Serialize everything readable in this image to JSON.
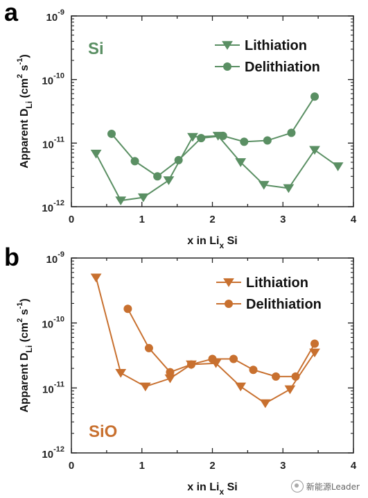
{
  "chart_data": [
    {
      "panel": "a",
      "type": "line",
      "material": "Si",
      "color": "#5a8f63",
      "xlabel": "x in Li_x Si",
      "ylabel": "Apparent D_Li (cm^2 s^-1)",
      "xlim": [
        0,
        4
      ],
      "ylim": [
        1e-12,
        1e-09
      ],
      "yscale": "log",
      "xticks": [
        "0",
        "1",
        "2",
        "3",
        "4"
      ],
      "yticks": [
        "10^-12",
        "10^-11",
        "10^-10",
        "10^-9"
      ],
      "legend_position": "top-right",
      "series": [
        {
          "name": "Lithiation",
          "marker": "triangle-down",
          "x": [
            0.35,
            0.7,
            1.02,
            1.38,
            1.72,
            2.08,
            2.4,
            2.73,
            3.08,
            3.45,
            3.78
          ],
          "y": [
            6.8e-12,
            1.25e-12,
            1.4e-12,
            2.6e-12,
            1.25e-11,
            1.3e-11,
            5e-12,
            2.2e-12,
            1.95e-12,
            7.8e-12,
            4.3e-12
          ]
        },
        {
          "name": "Delithiation",
          "marker": "circle",
          "x": [
            0.57,
            0.9,
            1.22,
            1.52,
            1.84,
            2.15,
            2.45,
            2.78,
            3.12,
            3.45
          ],
          "y": [
            1.4e-11,
            5.2e-12,
            3e-12,
            5.4e-12,
            1.2e-11,
            1.3e-11,
            1.05e-11,
            1.1e-11,
            1.45e-11,
            5.4e-11
          ]
        }
      ]
    },
    {
      "panel": "b",
      "type": "line",
      "material": "SiO",
      "color": "#c8702f",
      "xlabel": "x in Li_x Si",
      "ylabel": "Apparent D_Li (cm^2 s^-1)",
      "xlim": [
        0,
        4
      ],
      "ylim": [
        1e-12,
        1e-09
      ],
      "yscale": "log",
      "xticks": [
        "0",
        "1",
        "2",
        "3",
        "4"
      ],
      "yticks": [
        "10^-12",
        "10^-11",
        "10^-10",
        "10^-9"
      ],
      "legend_position": "top-right",
      "series": [
        {
          "name": "Lithiation",
          "marker": "triangle-down",
          "x": [
            0.35,
            0.7,
            1.05,
            1.4,
            1.7,
            2.05,
            2.4,
            2.75,
            3.1,
            3.45
          ],
          "y": [
            5e-10,
            1.7e-11,
            1.05e-11,
            1.4e-11,
            2.3e-11,
            2.4e-11,
            1.05e-11,
            5.8e-12,
            9.5e-12,
            3.5e-11
          ]
        },
        {
          "name": "Delithiation",
          "marker": "circle",
          "x": [
            0.8,
            1.1,
            1.4,
            1.7,
            2.0,
            2.3,
            2.58,
            2.9,
            3.18,
            3.45
          ],
          "y": [
            1.65e-10,
            4.1e-11,
            1.75e-11,
            2.3e-11,
            2.8e-11,
            2.8e-11,
            1.9e-11,
            1.5e-11,
            1.5e-11,
            4.8e-11
          ]
        }
      ]
    }
  ],
  "watermark": {
    "text": "新能源Leader",
    "icon": "wechat-icon"
  }
}
